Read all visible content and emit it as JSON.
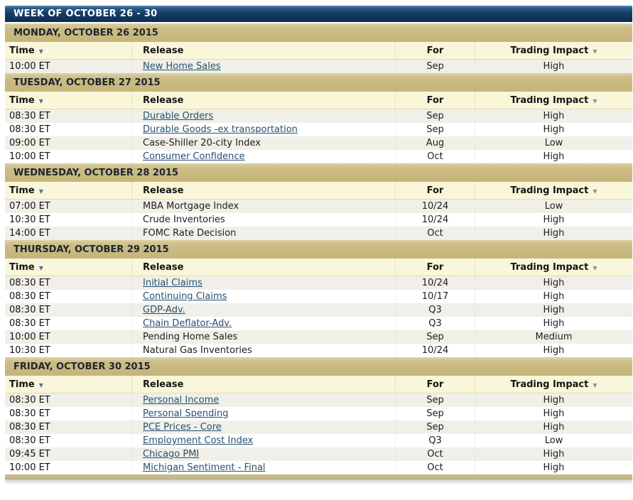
{
  "week_title": "WEEK OF OCTOBER 26 - 30",
  "columns": {
    "time": "Time",
    "release": "Release",
    "for": "For",
    "impact": "Trading Impact"
  },
  "icons": {
    "sort_down_glyph": "▼"
  },
  "colors": {
    "week_bar_navy": "#0d2c4e",
    "day_band_khaki": "#cbbc85",
    "column_header_cream": "#faf6d9",
    "row_alt_gray": "#f0f0e9",
    "link_blue": "#27506f",
    "time_sort_arrow_blue": "#3e79b4",
    "impact_sort_arrow_gray": "#8f8f8f"
  },
  "days": [
    {
      "label": "MONDAY, OCTOBER 26 2015",
      "rows": [
        {
          "time": "10:00 ET",
          "release": "New Home Sales",
          "link": true,
          "for": "Sep",
          "impact": "High"
        }
      ]
    },
    {
      "label": "TUESDAY, OCTOBER 27 2015",
      "rows": [
        {
          "time": "08:30 ET",
          "release": "Durable Orders",
          "link": true,
          "for": "Sep",
          "impact": "High"
        },
        {
          "time": "08:30 ET",
          "release": "Durable Goods -ex transportation",
          "link": true,
          "for": "Sep",
          "impact": "High"
        },
        {
          "time": "09:00 ET",
          "release": "Case-Shiller 20-city Index",
          "link": false,
          "for": "Aug",
          "impact": "Low"
        },
        {
          "time": "10:00 ET",
          "release": "Consumer Confidence",
          "link": true,
          "for": "Oct",
          "impact": "High"
        }
      ]
    },
    {
      "label": "WEDNESDAY, OCTOBER 28 2015",
      "rows": [
        {
          "time": "07:00 ET",
          "release": "MBA Mortgage Index",
          "link": false,
          "for": "10/24",
          "impact": "Low"
        },
        {
          "time": "10:30 ET",
          "release": "Crude Inventories",
          "link": false,
          "for": "10/24",
          "impact": "High"
        },
        {
          "time": "14:00 ET",
          "release": "FOMC Rate Decision",
          "link": false,
          "for": "Oct",
          "impact": "High"
        }
      ]
    },
    {
      "label": "THURSDAY, OCTOBER 29 2015",
      "rows": [
        {
          "time": "08:30 ET",
          "release": "Initial Claims",
          "link": true,
          "for": "10/24",
          "impact": "High"
        },
        {
          "time": "08:30 ET",
          "release": "Continuing Claims",
          "link": true,
          "for": "10/17",
          "impact": "High"
        },
        {
          "time": "08:30 ET",
          "release": "GDP-Adv.",
          "link": true,
          "for": "Q3",
          "impact": "High"
        },
        {
          "time": "08:30 ET",
          "release": "Chain Deflator-Adv.",
          "link": true,
          "for": "Q3",
          "impact": "High"
        },
        {
          "time": "10:00 ET",
          "release": "Pending Home Sales",
          "link": false,
          "for": "Sep",
          "impact": "Medium"
        },
        {
          "time": "10:30 ET",
          "release": "Natural Gas Inventories",
          "link": false,
          "for": "10/24",
          "impact": "High"
        }
      ]
    },
    {
      "label": "FRIDAY, OCTOBER 30 2015",
      "rows": [
        {
          "time": "08:30 ET",
          "release": "Personal Income",
          "link": true,
          "for": "Sep",
          "impact": "High"
        },
        {
          "time": "08:30 ET",
          "release": "Personal Spending",
          "link": true,
          "for": "Sep",
          "impact": "High"
        },
        {
          "time": "08:30 ET",
          "release": "PCE Prices - Core",
          "link": true,
          "for": "Sep",
          "impact": "High"
        },
        {
          "time": "08:30 ET",
          "release": "Employment Cost Index",
          "link": true,
          "for": "Q3",
          "impact": "Low"
        },
        {
          "time": "09:45 ET",
          "release": "Chicago PMI",
          "link": true,
          "for": "Oct",
          "impact": "High"
        },
        {
          "time": "10:00 ET",
          "release": "Michigan Sentiment - Final",
          "link": true,
          "for": "Oct",
          "impact": "High"
        }
      ]
    }
  ]
}
